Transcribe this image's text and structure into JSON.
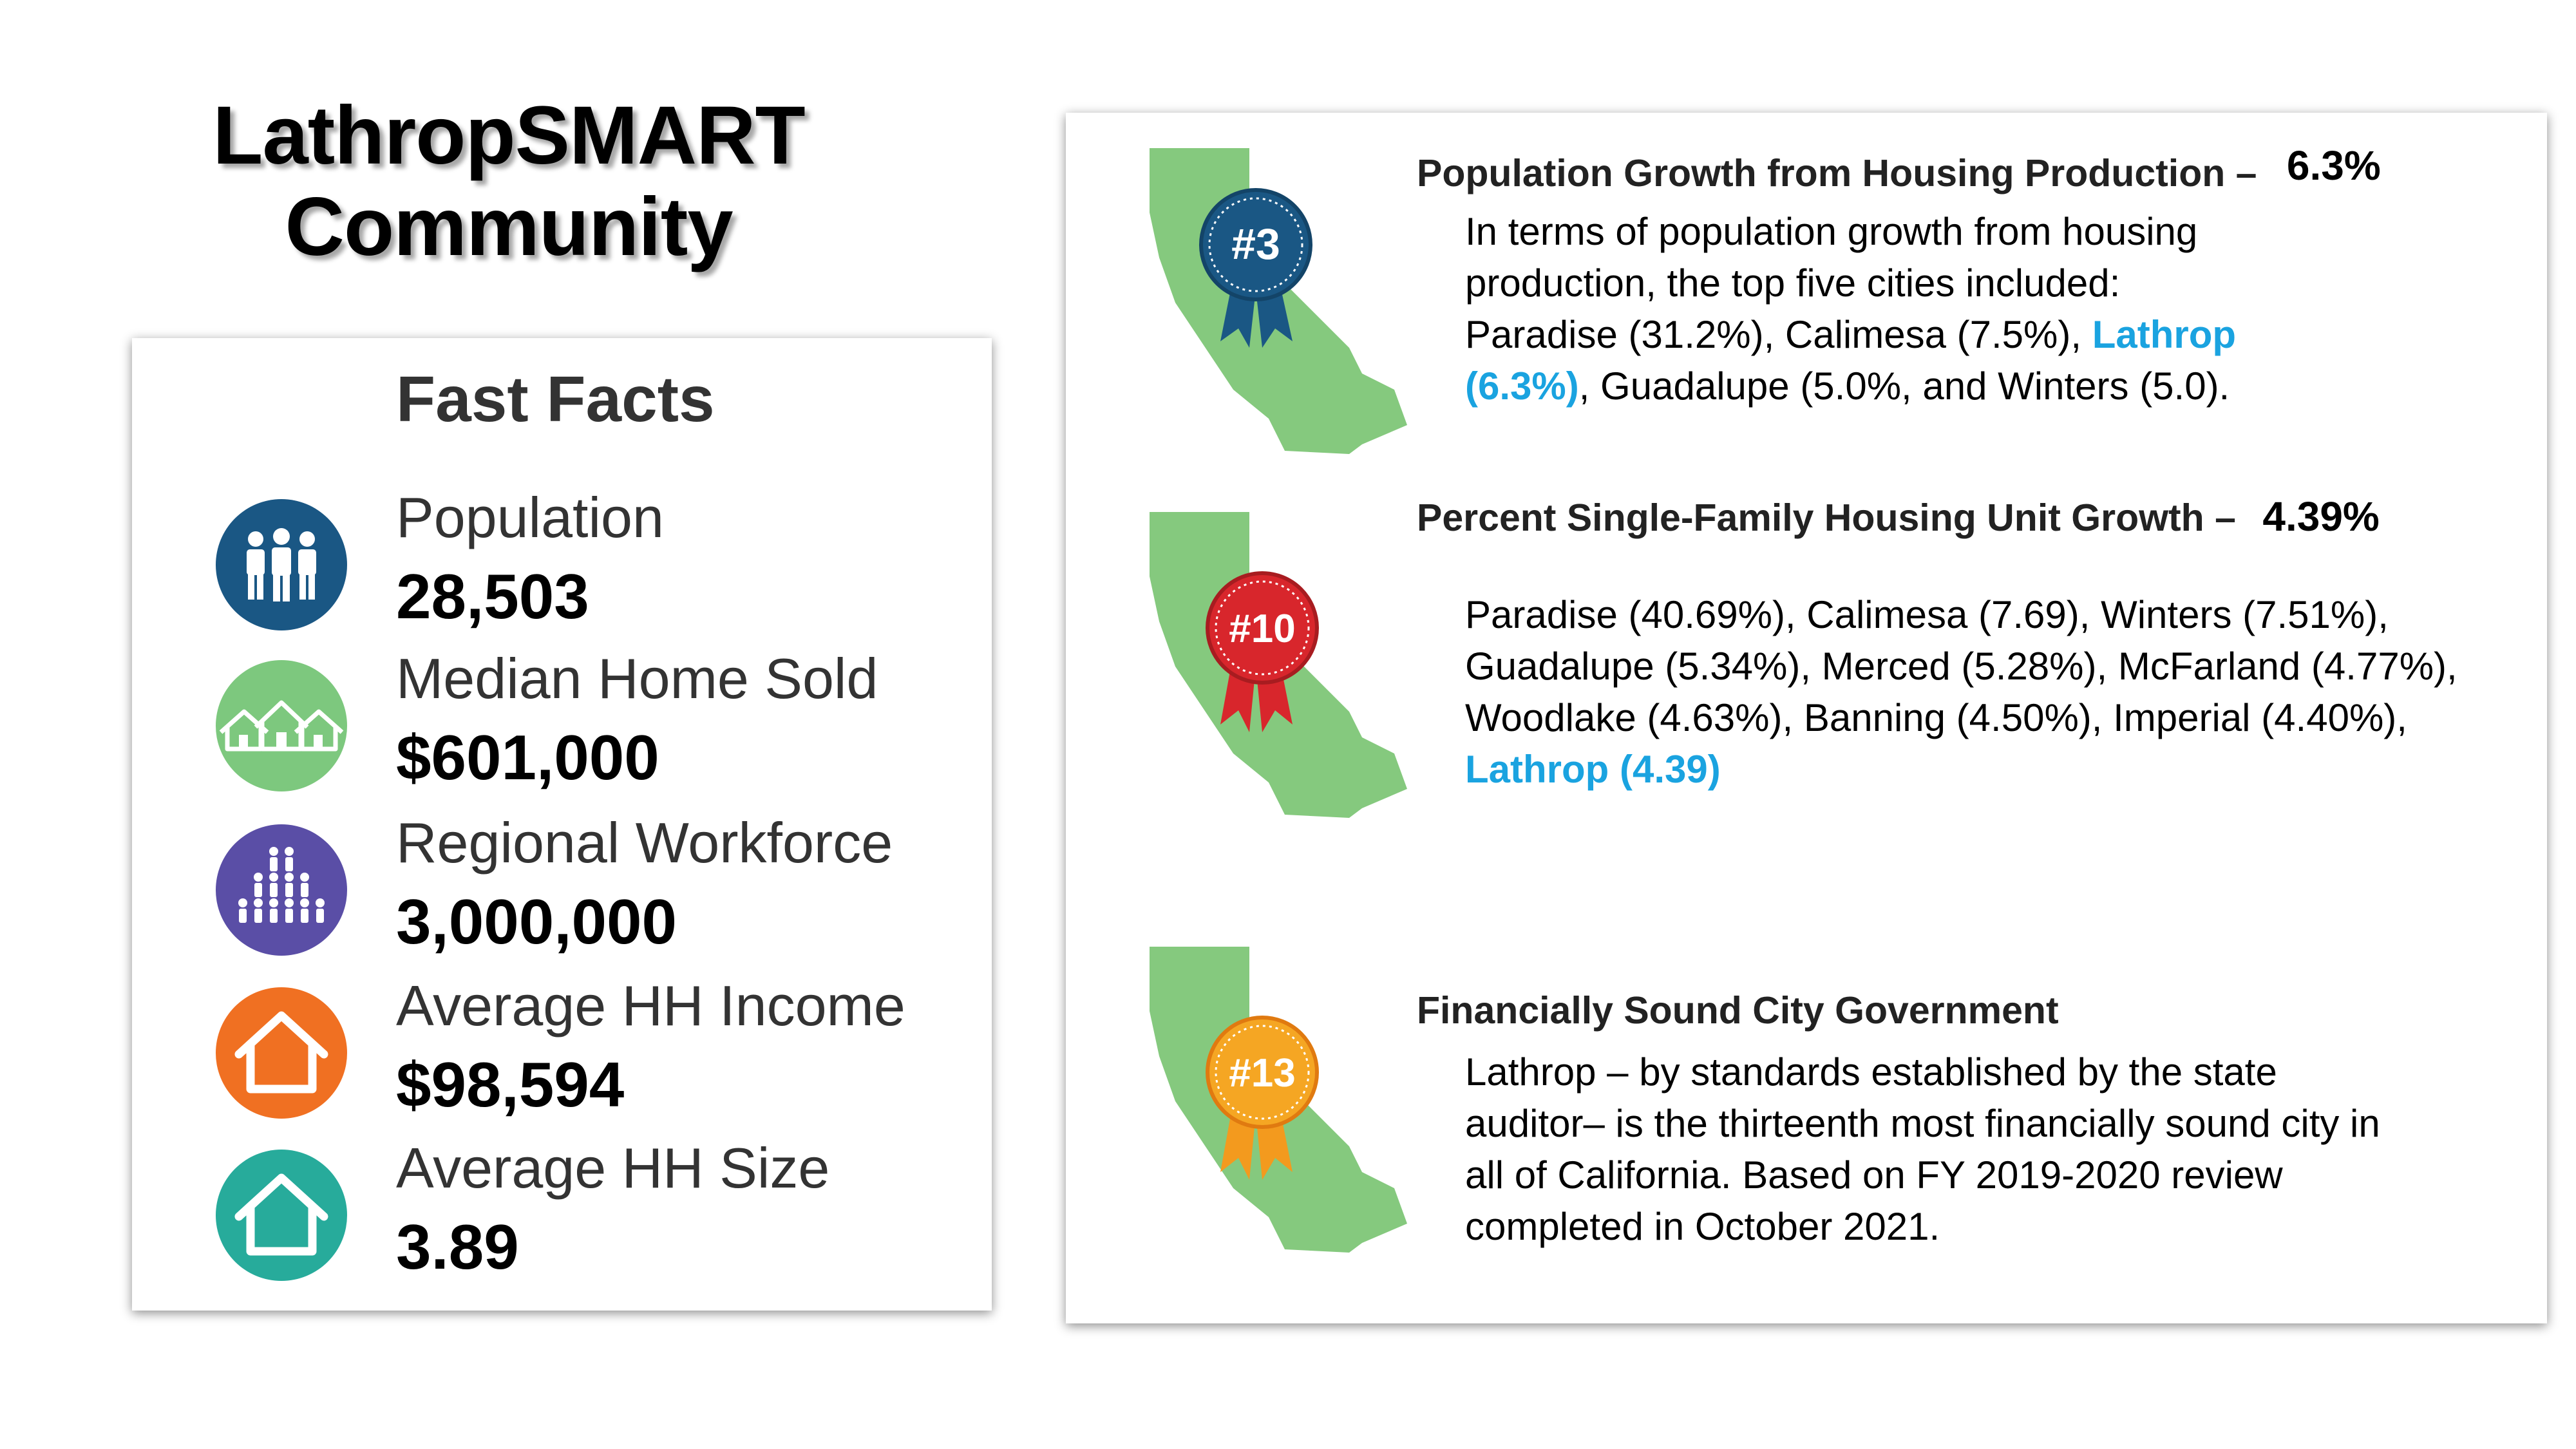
{
  "title": {
    "line1": "LathropSMART",
    "line2": "Community"
  },
  "fast_facts": {
    "heading": "Fast Facts",
    "items": [
      {
        "label": "Population",
        "value": "28,503",
        "icon": "people-icon",
        "color": "#1a5784"
      },
      {
        "label": "Median Home Sold",
        "value": "$601,000",
        "icon": "houses-icon",
        "color": "#7dc87e"
      },
      {
        "label": "Regional Workforce",
        "value": "3,000,000",
        "icon": "crowd-icon",
        "color": "#5a4ea6"
      },
      {
        "label": "Average HH Income",
        "value": "$98,594",
        "icon": "house-icon",
        "color": "#f07022"
      },
      {
        "label": "Average HH Size",
        "value": "3.89",
        "icon": "house-icon",
        "color": "#27ab9b"
      }
    ]
  },
  "rankings": [
    {
      "badge": "#3",
      "badge_color": "#1a5784",
      "heading": "Population Growth from Housing Production –",
      "pct": "6.3%",
      "body_before": "In terms of population growth from housing production, the top five cities included: Paradise (31.2%), Calimesa (7.5%), ",
      "highlight": "Lathrop (6.3%)",
      "body_after": ", Guadalupe (5.0%, and Winters (5.0)."
    },
    {
      "badge": "#10",
      "badge_color": "#d8262c",
      "heading": "Percent Single-Family Housing Unit Growth –",
      "pct": "4.39%",
      "body_before": "Paradise (40.69%), Calimesa (7.69), Winters (7.51%), Guadalupe (5.34%), Merced (5.28%), McFarland (4.77%), Woodlake (4.63%), Banning (4.50%), Imperial (4.40%), ",
      "highlight": "Lathrop (4.39)",
      "body_after": ""
    },
    {
      "badge": "#13",
      "badge_color": "#f59a1e",
      "heading": "Financially Sound City Government",
      "pct": "",
      "body_before": "Lathrop – by standards established by the state auditor– is the thirteenth most financially sound city in all of California.  Based on FY 2019-2020 review completed in October 2021.",
      "highlight": "",
      "body_after": ""
    }
  ],
  "colors": {
    "map_green": "#85c97e",
    "highlight_blue": "#1aa3e0"
  }
}
